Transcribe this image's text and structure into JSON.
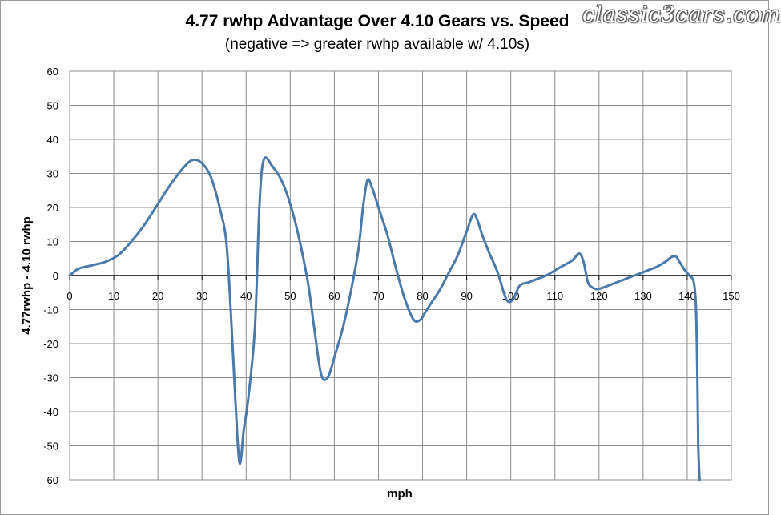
{
  "logo_text": "classic3cars.com",
  "chart_data": {
    "type": "line",
    "title": "4.77 rwhp Advantage Over 4.10 Gears vs. Speed",
    "subtitle": "(negative => greater rwhp available w/ 4.10s)",
    "xlabel": "mph",
    "ylabel": "4.77rwhp - 4.10 rwhp",
    "xlim": [
      0,
      150
    ],
    "ylim": [
      -60,
      60
    ],
    "x_ticks": [
      0,
      10,
      20,
      30,
      40,
      50,
      60,
      70,
      80,
      90,
      100,
      110,
      120,
      130,
      140,
      150
    ],
    "y_ticks": [
      60,
      50,
      40,
      30,
      20,
      10,
      0,
      -10,
      -20,
      -30,
      -40,
      -50,
      -60
    ],
    "grid": true,
    "line_color": "#4a7aab",
    "series": [
      {
        "name": "",
        "x": [
          0,
          2,
          5,
          8,
          11,
          14,
          17,
          20,
          23,
          26,
          28,
          30,
          32,
          34,
          35.5,
          36.5,
          37.5,
          38.5,
          39.5,
          40.5,
          42,
          43,
          44,
          46,
          48,
          50,
          52,
          54,
          55.5,
          57,
          58.5,
          60,
          62,
          64,
          65.5,
          66.5,
          67.5,
          68.5,
          70,
          72,
          74,
          76,
          78,
          79.5,
          80.5,
          82,
          84,
          86,
          88,
          90,
          91.5,
          92.5,
          93.5,
          95,
          97,
          99,
          100.5,
          102,
          104,
          106,
          108,
          110,
          112,
          114,
          115.5,
          116.5,
          117.5,
          118.5,
          119.5,
          121,
          123,
          125,
          127,
          129,
          131,
          133,
          135,
          136.5,
          137.5,
          138.5,
          139.5,
          140.5,
          141.5,
          142,
          142.3,
          142.5,
          142.8
        ],
        "y": [
          0,
          2,
          3,
          4,
          6,
          10,
          15,
          21,
          27,
          32,
          34,
          33,
          29,
          20,
          10,
          -10,
          -35,
          -55,
          -45,
          -36,
          -15,
          20,
          34,
          32,
          28,
          21,
          11,
          -2,
          -16,
          -29,
          -30,
          -24,
          -15,
          -3,
          8,
          20,
          28,
          26,
          20,
          12,
          2,
          -7,
          -13,
          -13,
          -11,
          -8,
          -4,
          1,
          6,
          13,
          18,
          16,
          12,
          7,
          1,
          -7,
          -7,
          -3,
          -2,
          -1,
          0,
          1.5,
          3,
          4.5,
          6.5,
          4,
          -2,
          -3.5,
          -4,
          -3.5,
          -2.5,
          -1.5,
          -0.5,
          0.5,
          1.5,
          2.5,
          4,
          5.5,
          5.5,
          3.5,
          1.5,
          0,
          -2,
          -10,
          -30,
          -50,
          -60
        ]
      }
    ]
  }
}
